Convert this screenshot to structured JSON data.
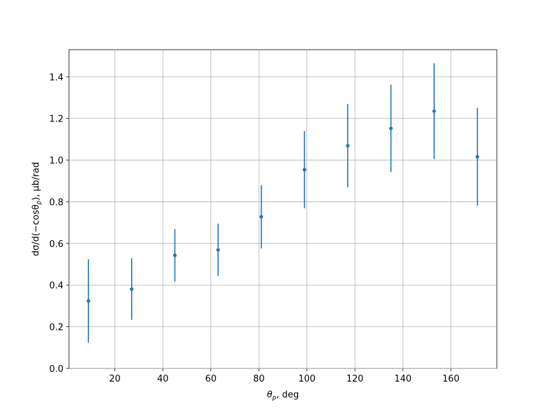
{
  "chart_data": {
    "type": "errorbar",
    "xlabel": [
      {
        "text": "θ"
      },
      {
        "sub": "p"
      },
      {
        "text": ", deg"
      }
    ],
    "ylabel": [
      {
        "text": "dσ/d(−cosθ"
      },
      {
        "sub": "p"
      },
      {
        "text": "), μb/rad"
      }
    ],
    "x": [
      9,
      27,
      45,
      63,
      81,
      99,
      117,
      135,
      153,
      171
    ],
    "series": [
      {
        "color": "#1f77b4",
        "values": [
          0.324,
          0.381,
          0.543,
          0.569,
          0.728,
          0.954,
          1.069,
          1.152,
          1.235,
          1.016
        ],
        "errors": [
          0.2,
          0.148,
          0.126,
          0.126,
          0.152,
          0.185,
          0.2,
          0.21,
          0.23,
          0.235
        ]
      }
    ],
    "xlim": [
      0.9,
      179.1
    ],
    "xticks": [
      20,
      40,
      60,
      80,
      100,
      120,
      140,
      160
    ],
    "ylim": [
      0,
      1.53
    ],
    "yticks": [
      {
        "value": 0,
        "label": "0.0"
      },
      {
        "value": 0.2,
        "label": "0.2"
      },
      {
        "value": 0.4,
        "label": "0.4"
      },
      {
        "value": 0.6,
        "label": "0.6"
      },
      {
        "value": 0.8,
        "label": "0.8"
      },
      {
        "value": 1,
        "label": "1.0"
      },
      {
        "value": 1.2,
        "label": "1.2"
      },
      {
        "value": 1.4,
        "label": "1.4"
      }
    ],
    "grid": true
  }
}
